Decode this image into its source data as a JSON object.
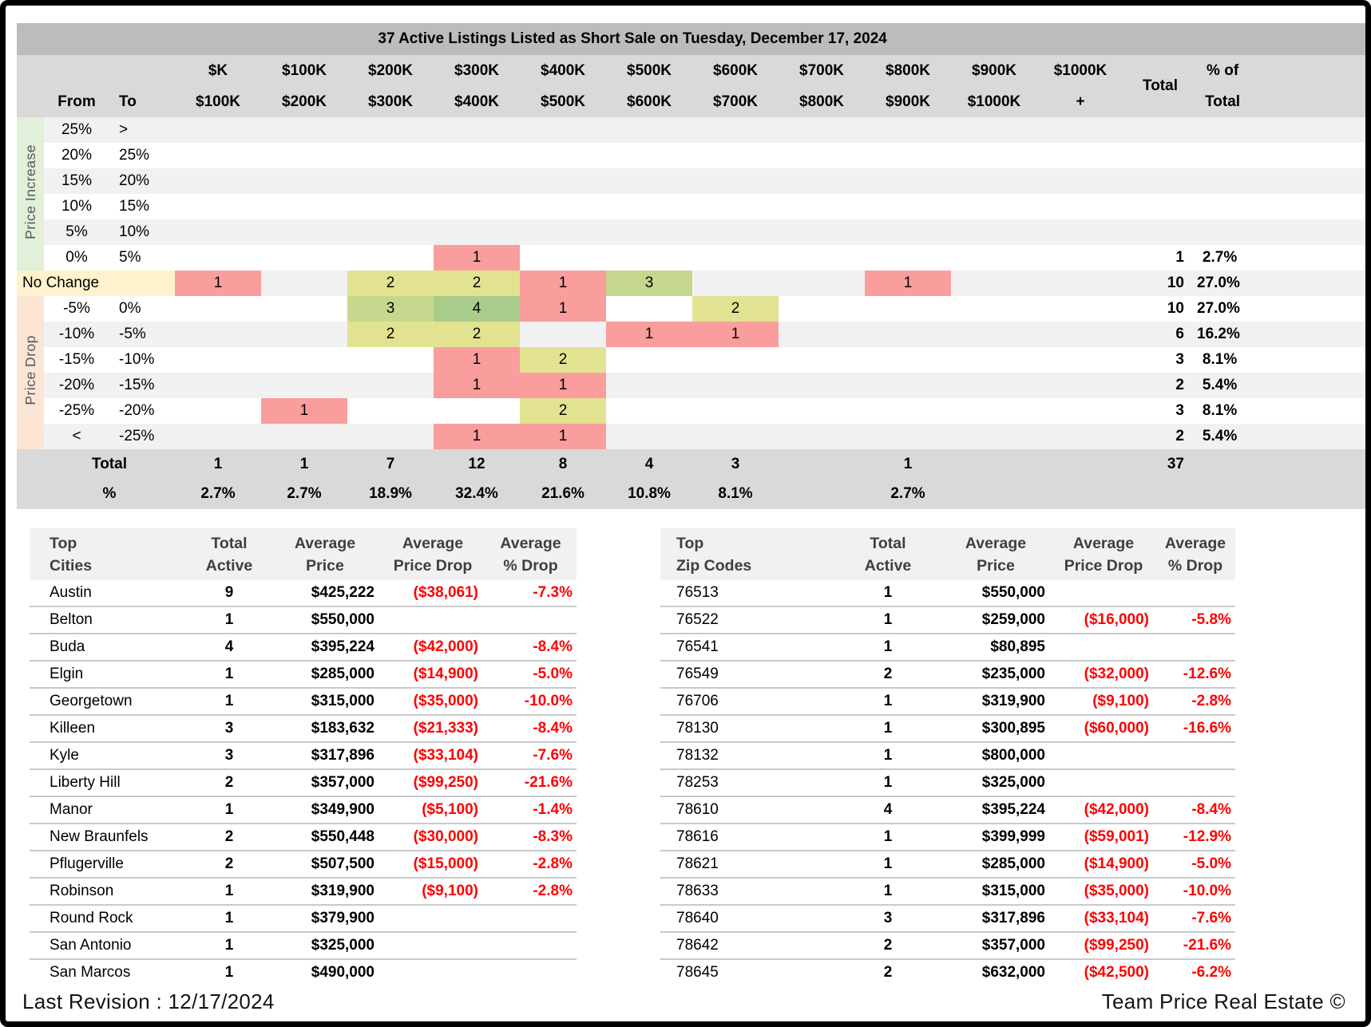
{
  "matrix": {
    "title": "37 Active Listings Listed as Short Sale on Tuesday, December 17, 2024",
    "corner": {
      "from": "From",
      "to": "To"
    },
    "price_columns": [
      [
        "$K",
        "$100K"
      ],
      [
        "$100K",
        "$200K"
      ],
      [
        "$200K",
        "$300K"
      ],
      [
        "$300K",
        "$400K"
      ],
      [
        "$400K",
        "$500K"
      ],
      [
        "$500K",
        "$600K"
      ],
      [
        "$600K",
        "$700K"
      ],
      [
        "$700K",
        "$800K"
      ],
      [
        "$800K",
        "$900K"
      ],
      [
        "$900K",
        "$1000K"
      ],
      [
        "$1000K",
        "+"
      ]
    ],
    "total_header": "Total",
    "pct_header": [
      "% of",
      "Total"
    ],
    "row_groups": {
      "increase": "Price Increase",
      "no_change": "No Change",
      "drop": "Price Drop"
    },
    "heat_colors": {
      "1": "#fa9d9d",
      "2": "#e2e391",
      "3": "#c5d88d",
      "4": "#a8cc8a"
    },
    "rows": [
      {
        "from": "25%",
        "to": ">",
        "cells": [
          "",
          "",
          "",
          "",
          "",
          "",
          "",
          "",
          "",
          "",
          ""
        ],
        "total": "",
        "pct": ""
      },
      {
        "from": "20%",
        "to": "25%",
        "cells": [
          "",
          "",
          "",
          "",
          "",
          "",
          "",
          "",
          "",
          "",
          ""
        ],
        "total": "",
        "pct": ""
      },
      {
        "from": "15%",
        "to": "20%",
        "cells": [
          "",
          "",
          "",
          "",
          "",
          "",
          "",
          "",
          "",
          "",
          ""
        ],
        "total": "",
        "pct": ""
      },
      {
        "from": "10%",
        "to": "15%",
        "cells": [
          "",
          "",
          "",
          "",
          "",
          "",
          "",
          "",
          "",
          "",
          ""
        ],
        "total": "",
        "pct": ""
      },
      {
        "from": "5%",
        "to": "10%",
        "cells": [
          "",
          "",
          "",
          "",
          "",
          "",
          "",
          "",
          "",
          "",
          ""
        ],
        "total": "",
        "pct": ""
      },
      {
        "from": "0%",
        "to": "5%",
        "cells": [
          "",
          "",
          "",
          "1",
          "",
          "",
          "",
          "",
          "",
          "",
          ""
        ],
        "total": "1",
        "pct": "2.7%"
      },
      {
        "from": "",
        "to": "",
        "cells": [
          "1",
          "",
          "2",
          "2",
          "1",
          "3",
          "",
          "",
          "1",
          "",
          ""
        ],
        "total": "10",
        "pct": "27.0%"
      },
      {
        "from": "-5%",
        "to": "0%",
        "cells": [
          "",
          "",
          "3",
          "4",
          "1",
          "",
          "2",
          "",
          "",
          "",
          ""
        ],
        "total": "10",
        "pct": "27.0%"
      },
      {
        "from": "-10%",
        "to": "-5%",
        "cells": [
          "",
          "",
          "2",
          "2",
          "",
          "1",
          "1",
          "",
          "",
          "",
          ""
        ],
        "total": "6",
        "pct": "16.2%"
      },
      {
        "from": "-15%",
        "to": "-10%",
        "cells": [
          "",
          "",
          "",
          "1",
          "2",
          "",
          "",
          "",
          "",
          "",
          ""
        ],
        "total": "3",
        "pct": "8.1%"
      },
      {
        "from": "-20%",
        "to": "-15%",
        "cells": [
          "",
          "",
          "",
          "1",
          "1",
          "",
          "",
          "",
          "",
          "",
          ""
        ],
        "total": "2",
        "pct": "5.4%"
      },
      {
        "from": "-25%",
        "to": "-20%",
        "cells": [
          "",
          "1",
          "",
          "",
          "2",
          "",
          "",
          "",
          "",
          "",
          ""
        ],
        "total": "3",
        "pct": "8.1%"
      },
      {
        "from": "<",
        "to": "-25%",
        "cells": [
          "",
          "",
          "",
          "1",
          "1",
          "",
          "",
          "",
          "",
          "",
          ""
        ],
        "total": "2",
        "pct": "5.4%"
      }
    ],
    "totals": {
      "label": "Total",
      "values": [
        "1",
        "1",
        "7",
        "12",
        "8",
        "4",
        "3",
        "",
        "1",
        "",
        ""
      ],
      "grand": "37"
    },
    "pcts": {
      "label": "%",
      "values": [
        "2.7%",
        "2.7%",
        "18.9%",
        "32.4%",
        "21.6%",
        "10.8%",
        "8.1%",
        "",
        "2.7%",
        "",
        ""
      ]
    }
  },
  "cities_table": {
    "headers": [
      [
        "Top",
        "Cities"
      ],
      [
        "Total",
        "Active"
      ],
      [
        "Average",
        "Price"
      ],
      [
        "Average",
        "Price Drop"
      ],
      [
        "Average",
        "% Drop"
      ]
    ],
    "rows": [
      [
        "Austin",
        "9",
        "$425,222",
        "($38,061)",
        "-7.3%"
      ],
      [
        "Belton",
        "1",
        "$550,000",
        "",
        ""
      ],
      [
        "Buda",
        "4",
        "$395,224",
        "($42,000)",
        "-8.4%"
      ],
      [
        "Elgin",
        "1",
        "$285,000",
        "($14,900)",
        "-5.0%"
      ],
      [
        "Georgetown",
        "1",
        "$315,000",
        "($35,000)",
        "-10.0%"
      ],
      [
        "Killeen",
        "3",
        "$183,632",
        "($21,333)",
        "-8.4%"
      ],
      [
        "Kyle",
        "3",
        "$317,896",
        "($33,104)",
        "-7.6%"
      ],
      [
        "Liberty Hill",
        "2",
        "$357,000",
        "($99,250)",
        "-21.6%"
      ],
      [
        "Manor",
        "1",
        "$349,900",
        "($5,100)",
        "-1.4%"
      ],
      [
        "New Braunfels",
        "2",
        "$550,448",
        "($30,000)",
        "-8.3%"
      ],
      [
        "Pflugerville",
        "2",
        "$507,500",
        "($15,000)",
        "-2.8%"
      ],
      [
        "Robinson",
        "1",
        "$319,900",
        "($9,100)",
        "-2.8%"
      ],
      [
        "Round Rock",
        "1",
        "$379,900",
        "",
        ""
      ],
      [
        "San Antonio",
        "1",
        "$325,000",
        "",
        ""
      ],
      [
        "San Marcos",
        "1",
        "$490,000",
        "",
        ""
      ]
    ]
  },
  "zips_table": {
    "headers": [
      [
        "Top",
        "Zip Codes"
      ],
      [
        "Total",
        "Active"
      ],
      [
        "Average",
        "Price"
      ],
      [
        "Average",
        "Price Drop"
      ],
      [
        "Average",
        "% Drop"
      ]
    ],
    "rows": [
      [
        "76513",
        "1",
        "$550,000",
        "",
        ""
      ],
      [
        "76522",
        "1",
        "$259,000",
        "($16,000)",
        "-5.8%"
      ],
      [
        "76541",
        "1",
        "$80,895",
        "",
        ""
      ],
      [
        "76549",
        "2",
        "$235,000",
        "($32,000)",
        "-12.6%"
      ],
      [
        "76706",
        "1",
        "$319,900",
        "($9,100)",
        "-2.8%"
      ],
      [
        "78130",
        "1",
        "$300,895",
        "($60,000)",
        "-16.6%"
      ],
      [
        "78132",
        "1",
        "$800,000",
        "",
        ""
      ],
      [
        "78253",
        "1",
        "$325,000",
        "",
        ""
      ],
      [
        "78610",
        "4",
        "$395,224",
        "($42,000)",
        "-8.4%"
      ],
      [
        "78616",
        "1",
        "$399,999",
        "($59,001)",
        "-12.9%"
      ],
      [
        "78621",
        "1",
        "$285,000",
        "($14,900)",
        "-5.0%"
      ],
      [
        "78633",
        "1",
        "$315,000",
        "($35,000)",
        "-10.0%"
      ],
      [
        "78640",
        "3",
        "$317,896",
        "($33,104)",
        "-7.6%"
      ],
      [
        "78642",
        "2",
        "$357,000",
        "($99,250)",
        "-21.6%"
      ],
      [
        "78645",
        "2",
        "$632,000",
        "($42,500)",
        "-6.2%"
      ]
    ]
  },
  "footer": {
    "left": "Last Revision : 12/17/2024",
    "right": "Team Price Real Estate ©"
  },
  "colors": {
    "title_bar": "#bcbcbc",
    "header_bg": "#d9d9d9",
    "row_stripe": "#f1f1f1",
    "price_increase_bg": "#e2efd9",
    "no_change_bg": "#fff2cc",
    "price_drop_bg": "#fbe5d5",
    "bottom_header_bg": "#f1f1f1",
    "negative_text": "#ff0000"
  },
  "chart_data": [
    {
      "type": "heatmap",
      "title": "37 Active Listings Listed as Short Sale on Tuesday, December 17, 2024",
      "x_categories": [
        "$K-$100K",
        "$100K-$200K",
        "$200K-$300K",
        "$300K-$400K",
        "$400K-$500K",
        "$500K-$600K",
        "$600K-$700K",
        "$700K-$800K",
        "$800K-$900K",
        "$900K-$1000K",
        "$1000K+"
      ],
      "y_categories": [
        "25% >",
        "20% 25%",
        "15% 20%",
        "10% 15%",
        "5% 10%",
        "0% 5%",
        "No Change",
        "-5% 0%",
        "-10% -5%",
        "-15% -10%",
        "-20% -15%",
        "-25% -20%",
        "< -25%"
      ],
      "values": [
        [
          null,
          null,
          null,
          null,
          null,
          null,
          null,
          null,
          null,
          null,
          null
        ],
        [
          null,
          null,
          null,
          null,
          null,
          null,
          null,
          null,
          null,
          null,
          null
        ],
        [
          null,
          null,
          null,
          null,
          null,
          null,
          null,
          null,
          null,
          null,
          null
        ],
        [
          null,
          null,
          null,
          null,
          null,
          null,
          null,
          null,
          null,
          null,
          null
        ],
        [
          null,
          null,
          null,
          null,
          null,
          null,
          null,
          null,
          null,
          null,
          null
        ],
        [
          null,
          null,
          null,
          1,
          null,
          null,
          null,
          null,
          null,
          null,
          null
        ],
        [
          1,
          null,
          2,
          2,
          1,
          3,
          null,
          null,
          1,
          null,
          null
        ],
        [
          null,
          null,
          3,
          4,
          1,
          null,
          2,
          null,
          null,
          null,
          null
        ],
        [
          null,
          null,
          2,
          2,
          null,
          1,
          1,
          null,
          null,
          null,
          null
        ],
        [
          null,
          null,
          null,
          1,
          2,
          null,
          null,
          null,
          null,
          null,
          null
        ],
        [
          null,
          null,
          null,
          1,
          1,
          null,
          null,
          null,
          null,
          null,
          null
        ],
        [
          null,
          1,
          null,
          null,
          2,
          null,
          null,
          null,
          null,
          null,
          null
        ],
        [
          null,
          null,
          null,
          1,
          1,
          null,
          null,
          null,
          null,
          null,
          null
        ]
      ],
      "row_totals": [
        null,
        null,
        null,
        null,
        null,
        1,
        10,
        10,
        6,
        3,
        2,
        3,
        2
      ],
      "row_pcts": [
        "",
        "",
        "",
        "",
        "",
        "2.7%",
        "27.0%",
        "27.0%",
        "16.2%",
        "8.1%",
        "5.4%",
        "8.1%",
        "5.4%"
      ],
      "col_totals": [
        1,
        1,
        7,
        12,
        8,
        4,
        3,
        null,
        1,
        null,
        null
      ],
      "col_pcts": [
        "2.7%",
        "2.7%",
        "18.9%",
        "32.4%",
        "21.6%",
        "10.8%",
        "8.1%",
        "",
        "2.7%",
        "",
        ""
      ],
      "grand_total": 37,
      "color_scale": {
        "1": "#fa9d9d",
        "2": "#e2e391",
        "3": "#c5d88d",
        "4": "#a8cc8a"
      }
    },
    {
      "type": "table",
      "title": "Top Cities",
      "columns": [
        "Top Cities",
        "Total Active",
        "Average Price",
        "Average Price Drop",
        "Average % Drop"
      ],
      "rows_ref": "cities_table.rows"
    },
    {
      "type": "table",
      "title": "Top Zip Codes",
      "columns": [
        "Top Zip Codes",
        "Total Active",
        "Average Price",
        "Average Price Drop",
        "Average % Drop"
      ],
      "rows_ref": "zips_table.rows"
    }
  ]
}
